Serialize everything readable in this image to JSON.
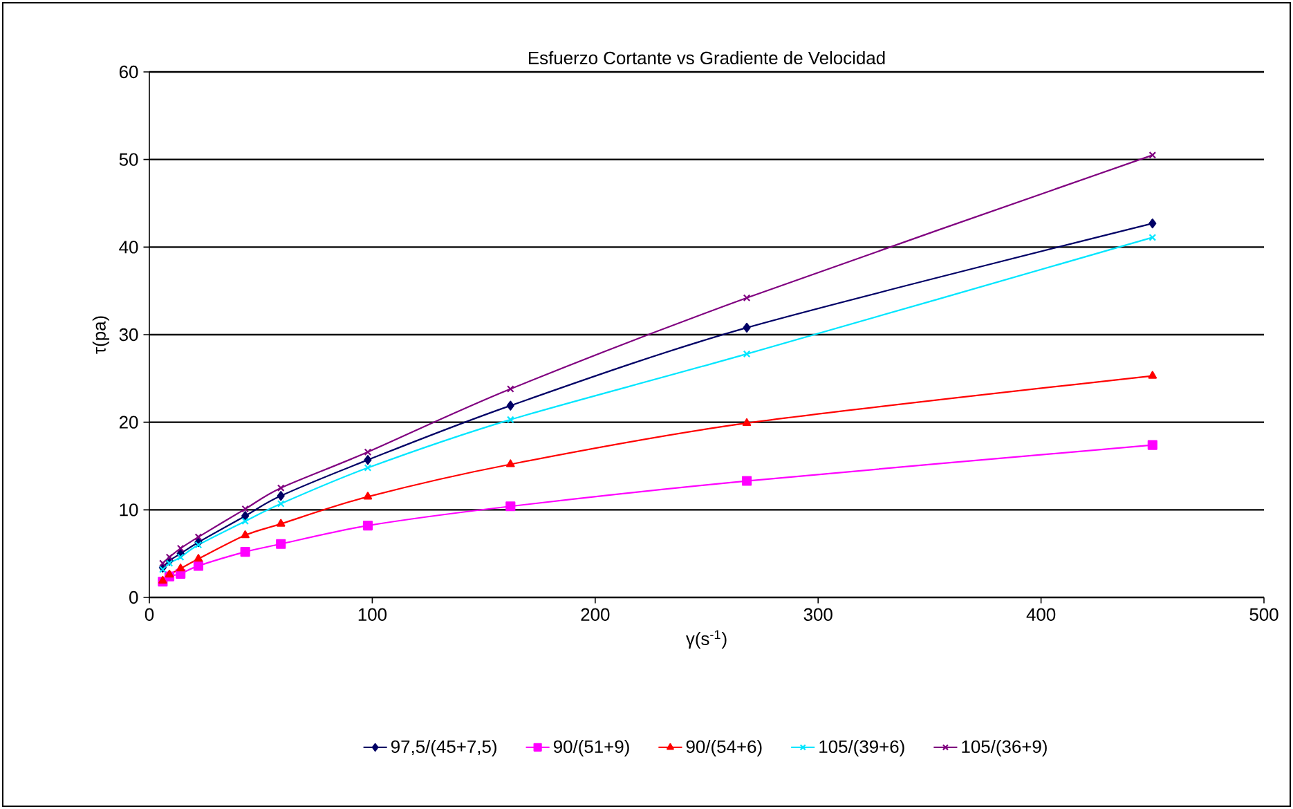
{
  "chart_data": {
    "type": "line",
    "title": "Esfuerzo Cortante vs Gradiente de Velocidad",
    "xlabel": "γ(s$^{-1}$)",
    "ylabel": "τ(pa)",
    "x": [
      6,
      9,
      14,
      22,
      43,
      59,
      98,
      162,
      268,
      450
    ],
    "series": [
      {
        "name": "97,5/(45+7,5)",
        "color": "#000066",
        "marker": "diamond",
        "values": [
          3.4,
          4.2,
          5.0,
          6.3,
          9.3,
          11.6,
          15.7,
          21.9,
          30.8,
          42.7
        ]
      },
      {
        "name": "90/(51+9)",
        "color": "#ff00ff",
        "marker": "square",
        "values": [
          1.8,
          2.4,
          2.7,
          3.6,
          5.2,
          6.1,
          8.2,
          10.4,
          13.3,
          17.4
        ]
      },
      {
        "name": "90/(54+6)",
        "color": "#ff0000",
        "marker": "triangle",
        "values": [
          1.9,
          2.6,
          3.3,
          4.4,
          7.1,
          8.4,
          11.5,
          15.2,
          19.9,
          25.3
        ]
      },
      {
        "name": "105/(39+6)",
        "color": "#00e6ff",
        "marker": "cross",
        "values": [
          3.2,
          3.9,
          4.6,
          6.0,
          8.7,
          10.7,
          14.8,
          20.3,
          27.8,
          41.1
        ]
      },
      {
        "name": "105/(36+9)",
        "color": "#800080",
        "marker": "cross",
        "values": [
          3.9,
          4.6,
          5.6,
          6.9,
          10.1,
          12.5,
          16.6,
          23.8,
          34.2,
          50.5
        ]
      }
    ],
    "xlim": [
      0,
      500
    ],
    "ylim": [
      0,
      60
    ],
    "xticks": [
      0,
      100,
      200,
      300,
      400,
      500
    ],
    "yticks": [
      0,
      10,
      20,
      30,
      40,
      50,
      60
    ],
    "grid": "y",
    "legend": "bottom"
  }
}
